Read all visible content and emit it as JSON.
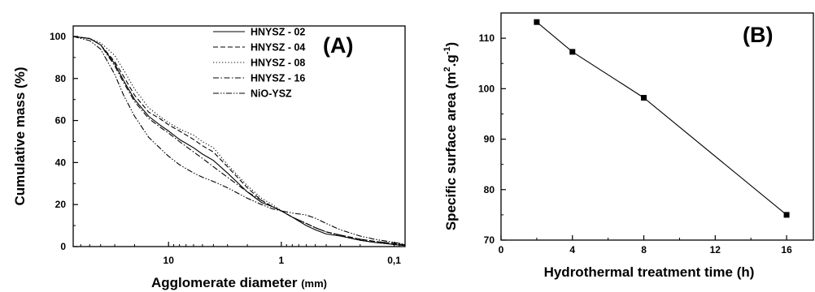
{
  "chart_data": [
    {
      "type": "line",
      "panel_label": "(A)",
      "xlabel": "Agglomerate diameter",
      "xlabel_unit": "(mm)",
      "ylabel": "Cumulative mass (%)",
      "x_scale": "log",
      "x_reversed": true,
      "xlim": [
        70,
        0.08
      ],
      "ylim": [
        0,
        105
      ],
      "x_ticks": [
        10,
        1,
        0.1
      ],
      "x_tick_labels": [
        "10",
        "1",
        "0,1"
      ],
      "y_ticks": [
        0,
        20,
        40,
        60,
        80,
        100
      ],
      "y_tick_labels": [
        "0",
        "20",
        "40",
        "60",
        "80",
        "100"
      ],
      "legend_position": "top-right",
      "grid": false,
      "series": [
        {
          "name": "HNYSZ - 02",
          "dash": "solid",
          "x": [
            70,
            50,
            40,
            30,
            25,
            20,
            15,
            12,
            10,
            8,
            6,
            5,
            4,
            3,
            2,
            1.5,
            1.2,
            1,
            0.8,
            0.6,
            0.5,
            0.4,
            0.3,
            0.2,
            0.15,
            0.1,
            0.08
          ],
          "y": [
            100,
            99,
            96,
            87,
            79,
            70,
            62,
            58,
            55,
            51,
            47,
            44,
            41,
            35,
            26,
            21,
            19,
            17,
            14,
            10,
            8,
            6,
            5,
            3,
            2,
            1,
            0.5
          ]
        },
        {
          "name": "HNYSZ - 04",
          "dash": "dashed",
          "x": [
            70,
            50,
            40,
            30,
            25,
            20,
            15,
            12,
            10,
            8,
            6,
            5,
            4,
            3,
            2,
            1.5,
            1.2,
            1,
            0.8,
            0.6,
            0.5,
            0.4,
            0.3,
            0.2,
            0.15,
            0.1,
            0.08
          ],
          "y": [
            100,
            99,
            96,
            88,
            81,
            72,
            64,
            61,
            58,
            55,
            51,
            48,
            45,
            38,
            28,
            22,
            19,
            17,
            14,
            11,
            9,
            7,
            5.5,
            3.5,
            2.5,
            1.5,
            0.8
          ]
        },
        {
          "name": "HNYSZ - 08",
          "dash": "dotted",
          "x": [
            70,
            50,
            40,
            30,
            25,
            20,
            15,
            12,
            10,
            8,
            6,
            5,
            4,
            3,
            2,
            1.5,
            1.2,
            1,
            0.8,
            0.6,
            0.5,
            0.4,
            0.3,
            0.2,
            0.15,
            0.1,
            0.08
          ],
          "y": [
            100,
            99,
            97,
            91,
            84,
            75,
            66,
            62,
            59,
            56,
            53,
            50,
            47,
            39,
            29,
            23,
            20,
            17,
            14,
            11,
            9,
            7,
            5,
            3,
            2,
            1,
            0.5
          ]
        },
        {
          "name": "HNYSZ - 16",
          "dash": "dash-dot",
          "x": [
            70,
            50,
            40,
            30,
            25,
            20,
            15,
            12,
            10,
            8,
            6,
            5,
            4,
            3,
            2,
            1.5,
            1.2,
            1,
            0.8,
            0.6,
            0.5,
            0.4,
            0.3,
            0.2,
            0.15,
            0.1,
            0.08
          ],
          "y": [
            100,
            99,
            96,
            86,
            78,
            69,
            61,
            57,
            54,
            50,
            45,
            42,
            38,
            33,
            26,
            22,
            19,
            17,
            14,
            11,
            9,
            7,
            5.5,
            3.5,
            2.5,
            1.5,
            0.8
          ]
        },
        {
          "name": "NiO-YSZ",
          "dash": "dash-dot-dot",
          "x": [
            70,
            50,
            40,
            30,
            25,
            20,
            15,
            12,
            10,
            8,
            6,
            5,
            4,
            3,
            2,
            1.5,
            1.2,
            1,
            0.8,
            0.6,
            0.5,
            0.4,
            0.3,
            0.2,
            0.15,
            0.1,
            0.08
          ],
          "y": [
            100,
            98,
            94,
            82,
            72,
            62,
            52,
            47,
            43,
            39,
            35,
            33,
            31,
            28,
            23,
            20,
            18,
            17,
            16,
            15,
            13.5,
            11,
            8,
            5,
            3.5,
            2,
            1
          ]
        }
      ]
    },
    {
      "type": "line",
      "panel_label": "(B)",
      "xlabel": "Hydrothermal treatment time (h)",
      "ylabel_main": "Specific surface area",
      "ylabel_unit_open": "(m",
      "ylabel_sup1": "2",
      "ylabel_mid": ".g",
      "ylabel_sup2": "-1",
      "ylabel_close": ")",
      "xlim": [
        0,
        17.5
      ],
      "ylim": [
        70,
        115
      ],
      "x_ticks": [
        0,
        4,
        8,
        12,
        16
      ],
      "x_tick_labels": [
        "0",
        "4",
        "8",
        "12",
        "16"
      ],
      "y_ticks": [
        70,
        80,
        90,
        100,
        110
      ],
      "y_tick_labels": [
        "70",
        "80",
        "90",
        "100",
        "110"
      ],
      "marker": "square",
      "grid": false,
      "series": [
        {
          "x": [
            2,
            4,
            8,
            16
          ],
          "values": [
            113.2,
            107.3,
            98.2,
            75
          ]
        }
      ]
    }
  ]
}
